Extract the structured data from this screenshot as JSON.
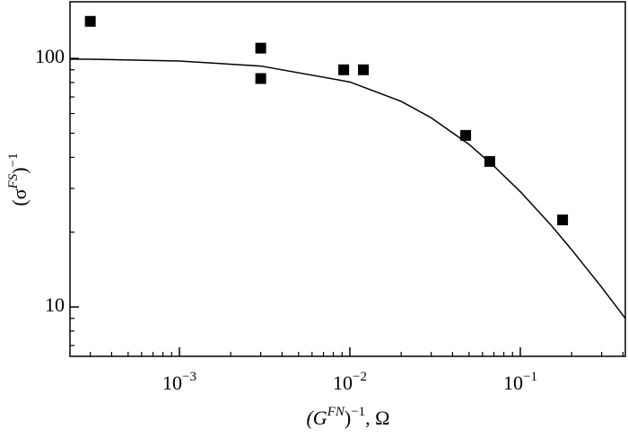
{
  "chart_data": {
    "type": "scatter",
    "xlabel": "(GFN)−1, Ω",
    "ylabel": "(σFS)−1",
    "xscale": "log",
    "yscale": "log",
    "xlim": [
      0.000228,
      0.413
    ],
    "ylim": [
      6.33,
      169
    ],
    "xticks": [
      {
        "value": 0.001,
        "label": "10−3"
      },
      {
        "value": 0.01,
        "label": "10−2"
      },
      {
        "value": 0.1,
        "label": "10−1"
      }
    ],
    "yticks": [
      10,
      100
    ],
    "xminorticks": [
      0.0003,
      0.0004,
      0.0005,
      0.0006,
      0.0007,
      0.0008,
      0.0009,
      0.002,
      0.003,
      0.004,
      0.005,
      0.006,
      0.007,
      0.008,
      0.009,
      0.02,
      0.03,
      0.04,
      0.05,
      0.06,
      0.07,
      0.08,
      0.09,
      0.2,
      0.3,
      0.4
    ],
    "yminorticks": [
      7,
      8,
      9,
      20,
      30,
      40,
      50,
      60,
      70,
      80,
      90
    ],
    "series": [
      {
        "type": "scatter",
        "color": "#000000",
        "x": [
          0.0003,
          0.003,
          0.003,
          0.0092,
          0.012,
          0.0478,
          0.0662,
          0.177
        ],
        "values": [
          141,
          110,
          83,
          90,
          90,
          49,
          38.5,
          22.4
        ]
      },
      {
        "type": "line",
        "color": "#000000",
        "x": [
          0.000228,
          0.0003,
          0.001,
          0.003,
          0.01,
          0.02,
          0.03,
          0.05,
          0.07,
          0.1,
          0.15,
          0.2,
          0.3,
          0.413
        ],
        "values": [
          99.4,
          99.3,
          97.6,
          93.2,
          80.4,
          67.2,
          57.7,
          45.1,
          36.9,
          29.1,
          21.5,
          17.0,
          12.0,
          9.0
        ]
      }
    ]
  }
}
